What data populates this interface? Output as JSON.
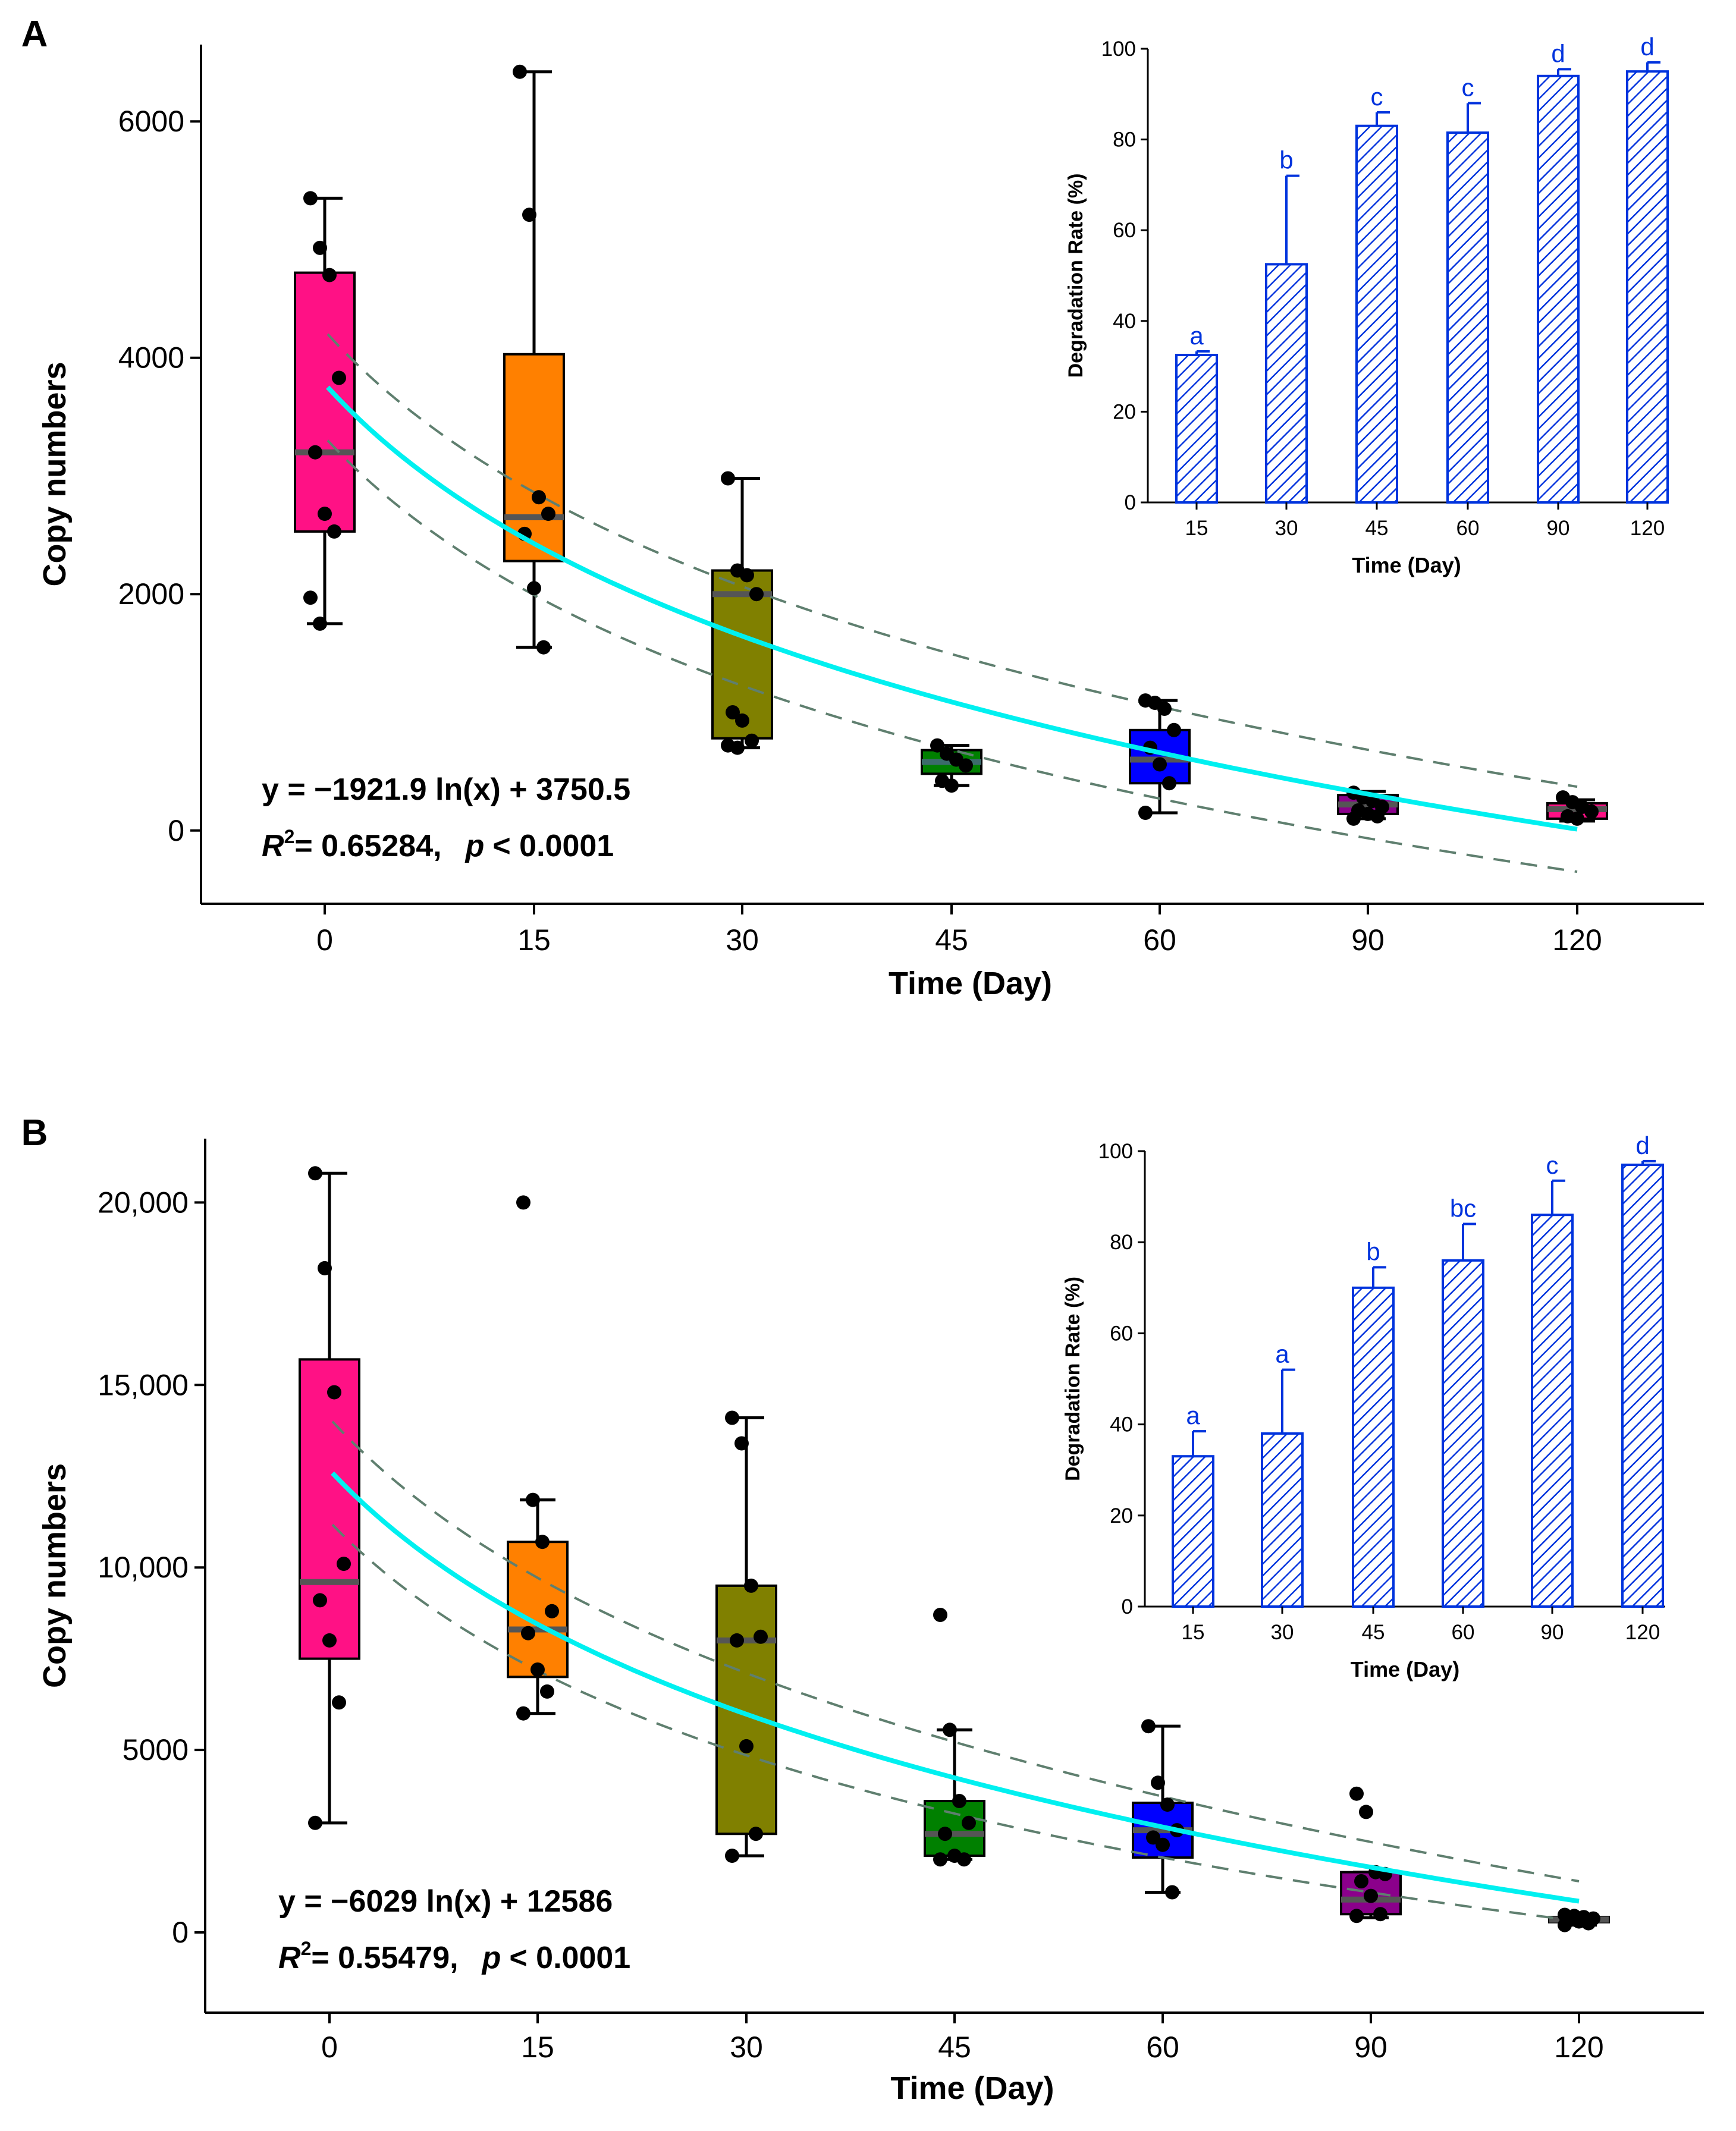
{
  "panels": [
    {
      "label": "A",
      "chart_data": {
        "type": "box",
        "title": "",
        "xlabel": "Time (Day)",
        "ylabel": "Copy numbers",
        "categories": [
          "0",
          "15",
          "30",
          "45",
          "60",
          "90",
          "120"
        ],
        "x": [
          0,
          15,
          30,
          45,
          60,
          90,
          120
        ],
        "ylim": [
          -620,
          6650
        ],
        "yticks": [
          0,
          2000,
          4000,
          6000
        ],
        "ytick_labels": [
          "0",
          "2000",
          "4000",
          "6000"
        ],
        "boxes": [
          {
            "x": 0,
            "min": 1750,
            "q1": 2530,
            "median": 3200,
            "q3": 4720,
            "max": 5350,
            "color": "#FF1185",
            "median_color": "#555555"
          },
          {
            "x": 15,
            "min": 1550,
            "q1": 2280,
            "median": 2650,
            "q3": 4030,
            "max": 6420,
            "color": "#FF8000",
            "median_color": "#555555"
          },
          {
            "x": 30,
            "min": 700,
            "q1": 780,
            "median": 2000,
            "q3": 2200,
            "max": 2980,
            "color": "#808000",
            "median_color": "#555555"
          },
          {
            "x": 45,
            "min": 380,
            "q1": 480,
            "median": 580,
            "q3": 680,
            "max": 720,
            "color": "#008000",
            "median_color": "#3c6b6b"
          },
          {
            "x": 60,
            "min": 150,
            "q1": 400,
            "median": 600,
            "q3": 850,
            "max": 1100,
            "color": "#0000FF",
            "median_color": "#555555"
          },
          {
            "x": 90,
            "min": 100,
            "q1": 140,
            "median": 220,
            "q3": 300,
            "max": 330,
            "color": "#8B008B",
            "median_color": "#555555"
          },
          {
            "x": 120,
            "min": 80,
            "q1": 100,
            "median": 180,
            "q3": 230,
            "max": 260,
            "color": "#FF1185",
            "median_color": "#555555"
          }
        ],
        "points": [
          {
            "x": 0,
            "values": [
              5350,
              4930,
              4700,
              3830,
              3200,
              2680,
              2530,
              1970,
              1750
            ]
          },
          {
            "x": 15,
            "values": [
              6420,
              5210,
              2820,
              2680,
              2510,
              2050,
              1550
            ]
          },
          {
            "x": 30,
            "values": [
              2980,
              2200,
              2160,
              2000,
              1000,
              930,
              760,
              720,
              700
            ]
          },
          {
            "x": 45,
            "values": [
              720,
              650,
              600,
              550,
              420,
              380
            ]
          },
          {
            "x": 60,
            "values": [
              1100,
              1080,
              1030,
              850,
              700,
              560,
              400,
              150
            ]
          },
          {
            "x": 90,
            "values": [
              320,
              280,
              250,
              200,
              170,
              140,
              120,
              100
            ]
          },
          {
            "x": 120,
            "values": [
              280,
              240,
              200,
              160,
              120,
              100
            ]
          }
        ],
        "fit": {
          "a": -1921.9,
          "b": 3750.5,
          "color": "#00F0F0",
          "band_color": "#5f7f6f",
          "band_start": 4200,
          "band_end": 370
        },
        "annotation": {
          "equation": "y = −1921.9 ln(x) + 3750.5",
          "r2_label": "R",
          "r2_sup": "2",
          "r2_value": "= 0.65284,",
          "p_label": "p",
          "p_value": "< 0.0001"
        },
        "inset": {
          "type": "bar",
          "xlabel": "Time (Day)",
          "ylabel": "Degradation Rate (%)",
          "categories": [
            "15",
            "30",
            "45",
            "60",
            "90",
            "120"
          ],
          "values": [
            32.5,
            52.5,
            83,
            81.5,
            94,
            95
          ],
          "errors": [
            0.8,
            19.5,
            3,
            6.5,
            1.5,
            2
          ],
          "letters": [
            "a",
            "b",
            "c",
            "c",
            "d",
            "d"
          ],
          "ylim": [
            0,
            100
          ],
          "yticks": [
            "0",
            "20",
            "40",
            "60",
            "80",
            "100"
          ],
          "color": "#0033DD"
        }
      }
    },
    {
      "label": "B",
      "chart_data": {
        "type": "box",
        "title": "",
        "xlabel": "Time (Day)",
        "ylabel": "Copy numbers",
        "categories": [
          "0",
          "15",
          "30",
          "45",
          "60",
          "90",
          "120"
        ],
        "x": [
          0,
          15,
          30,
          45,
          60,
          90,
          120
        ],
        "ylim": [
          -2200,
          21750
        ],
        "yticks": [
          0,
          5000,
          10000,
          15000,
          20000
        ],
        "ytick_labels": [
          "0",
          "5000",
          "10,000",
          "15,000",
          "20,000"
        ],
        "boxes": [
          {
            "x": 0,
            "min": 3000,
            "q1": 7500,
            "median": 9600,
            "q3": 15700,
            "max": 20800,
            "color": "#FF1185",
            "median_color": "#555555"
          },
          {
            "x": 15,
            "min": 6000,
            "q1": 7000,
            "median": 8300,
            "q3": 10700,
            "max": 11850,
            "color": "#FF8000",
            "median_color": "#555555"
          },
          {
            "x": 30,
            "min": 2100,
            "q1": 2700,
            "median": 8000,
            "q3": 9500,
            "max": 14100,
            "color": "#808000",
            "median_color": "#555555"
          },
          {
            "x": 45,
            "min": 2000,
            "q1": 2100,
            "median": 2700,
            "q3": 3600,
            "max": 5550,
            "color": "#008000",
            "median_color": "#555555"
          },
          {
            "x": 60,
            "min": 1100,
            "q1": 2050,
            "median": 2800,
            "q3": 3550,
            "max": 5650,
            "color": "#0000FF",
            "median_color": "#555555"
          },
          {
            "x": 90,
            "min": 400,
            "q1": 500,
            "median": 900,
            "q3": 1650,
            "max": 1650,
            "color": "#8B008B",
            "median_color": "#555555"
          },
          {
            "x": 120,
            "min": 200,
            "q1": 280,
            "median": 350,
            "q3": 420,
            "max": 480,
            "color": "#FF1185",
            "median_color": "#555555"
          }
        ],
        "points": [
          {
            "x": 0,
            "values": [
              20800,
              18200,
              14800,
              10100,
              9100,
              8000,
              6300,
              3000
            ]
          },
          {
            "x": 15,
            "values": [
              20000,
              11850,
              10700,
              8800,
              8200,
              7200,
              6600,
              6000
            ]
          },
          {
            "x": 30,
            "values": [
              14100,
              13400,
              9500,
              8100,
              8000,
              5100,
              2700,
              2100
            ]
          },
          {
            "x": 45,
            "values": [
              8700,
              5550,
              3600,
              3000,
              2700,
              2100,
              2000,
              2000
            ]
          },
          {
            "x": 60,
            "values": [
              5650,
              4100,
              3500,
              2800,
              2600,
              2400,
              1100
            ]
          },
          {
            "x": 90,
            "values": [
              3800,
              3300,
              1650,
              1600,
              1400,
              1000,
              500,
              450
            ]
          },
          {
            "x": 120,
            "values": [
              480,
              450,
              420,
              380,
              350,
              300,
              250,
              200
            ]
          }
        ],
        "fit": {
          "a": -6029,
          "b": 12586,
          "color": "#00F0F0",
          "band_color": "#5f7f6f",
          "band_start": 14000,
          "band_end": 1400
        },
        "annotation": {
          "equation": "y = −6029 ln(x) + 12586",
          "r2_label": "R",
          "r2_sup": "2",
          "r2_value": "= 0.55479,",
          "p_label": "p",
          "p_value": "< 0.0001"
        },
        "inset": {
          "type": "bar",
          "xlabel": "Time (Day)",
          "ylabel": "Degradation Rate (%)",
          "categories": [
            "15",
            "30",
            "45",
            "60",
            "90",
            "120"
          ],
          "values": [
            33,
            38,
            70,
            76,
            86,
            97
          ],
          "errors": [
            5.5,
            14,
            4.5,
            8,
            7.5,
            0.8
          ],
          "letters": [
            "a",
            "a",
            "b",
            "bc",
            "c",
            "d"
          ],
          "ylim": [
            0,
            100
          ],
          "yticks": [
            "0",
            "20",
            "40",
            "60",
            "80",
            "100"
          ],
          "color": "#0033DD"
        }
      }
    }
  ]
}
